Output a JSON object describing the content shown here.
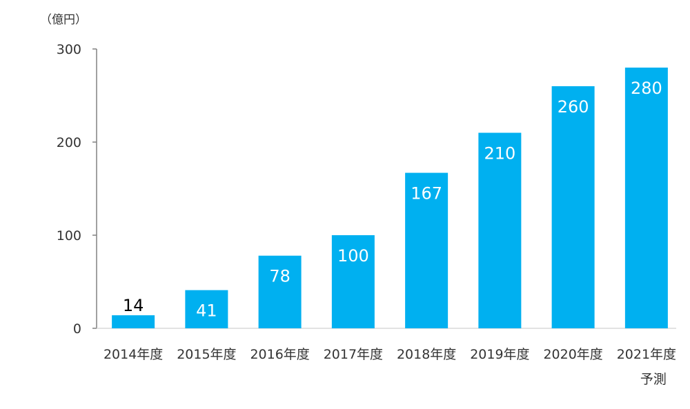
{
  "chart_data": {
    "type": "bar",
    "unit_label": "（億円）",
    "categories": [
      [
        "2014年度"
      ],
      [
        "2015年度"
      ],
      [
        "2016年度"
      ],
      [
        "2017年度"
      ],
      [
        "2018年度"
      ],
      [
        "2019年度"
      ],
      [
        "2020年度"
      ],
      [
        "2021年度",
        "予測"
      ]
    ],
    "values": [
      14,
      41,
      78,
      100,
      167,
      210,
      260,
      280
    ],
    "ylim": [
      0,
      300
    ],
    "yticks": [
      0,
      100,
      200,
      300
    ],
    "grid": false,
    "bar_color": "#00B0F0",
    "label_inside_color": "#ffffff",
    "label_outside_color": "#000000"
  }
}
